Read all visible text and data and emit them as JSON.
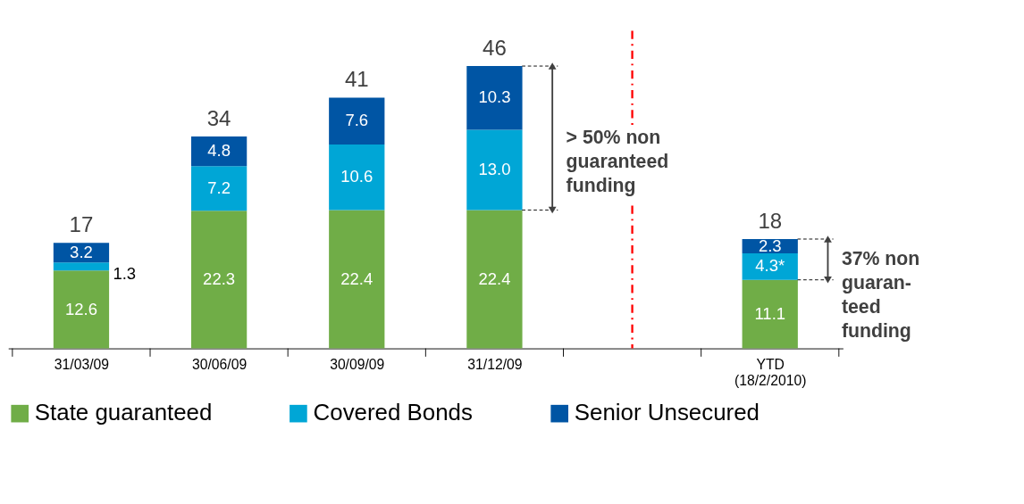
{
  "chart_data": {
    "type": "bar",
    "stacked": true,
    "categories": [
      "31/03/09",
      "30/06/09",
      "30/09/09",
      "31/12/09",
      null,
      "YTD\n(18/2/2010)"
    ],
    "series": [
      {
        "name": "State guaranteed",
        "color": "#70ad47",
        "values": [
          12.6,
          22.3,
          22.4,
          22.4,
          null,
          11.1
        ],
        "value_labels": [
          "12.6",
          "22.3",
          "22.4",
          "22.4",
          null,
          "11.1"
        ]
      },
      {
        "name": "Covered Bonds",
        "color": "#00a6d6",
        "values": [
          1.3,
          7.2,
          10.6,
          13.0,
          null,
          4.3
        ],
        "value_labels": [
          "1.3",
          "7.2",
          "10.6",
          "13.0",
          null,
          "4.3*"
        ]
      },
      {
        "name": "Senior Unsecured",
        "color": "#0055a4",
        "values": [
          3.2,
          4.8,
          7.6,
          10.3,
          null,
          2.3
        ],
        "value_labels": [
          "3.2",
          "4.8",
          "7.6",
          "10.3",
          null,
          "2.3"
        ]
      }
    ],
    "totals": [
      "17",
      "34",
      "41",
      "46",
      null,
      "18"
    ],
    "ref_lines": [
      {
        "axis": "x",
        "value": null,
        "color": "#ff0000",
        "line_style": "dashed"
      }
    ],
    "annotations": [
      "> 50% non\nguaranteed\nfunding",
      "37% non\nguaran-\nteed\nfunding"
    ],
    "legend": "bottom"
  }
}
